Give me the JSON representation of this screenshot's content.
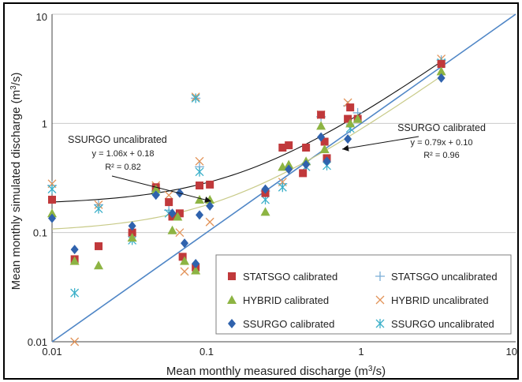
{
  "chart_data": {
    "type": "scatter",
    "title": "",
    "xlabel": "Mean monthly measured discharge (m",
    "xlabel_sup": "3",
    "xlabel_tail": "/s)",
    "ylabel": "Mean monthly simulated discharge (m",
    "ylabel_sup": "3",
    "ylabel_tail": "/s)",
    "x_scale": "log",
    "y_scale": "log",
    "xlim": [
      0.01,
      10
    ],
    "ylim": [
      0.01,
      10
    ],
    "x_ticks": [
      "0.01",
      "0.1",
      "1",
      "10"
    ],
    "y_ticks": [
      "0.01",
      "0.1",
      "1",
      "10"
    ],
    "grid": "horizontal major",
    "legend_position": "bottom-right inside",
    "colors": {
      "statsgo": "#c0393b",
      "hybrid": "#8db443",
      "ssurgo": "#2f62ad",
      "statsgo_uncal": "#7aaed6",
      "hybrid_uncal": "#e29358",
      "ssurgo_uncal": "#3cb0c9",
      "one_to_one": "#4f86c6",
      "fit_uncal": "#111111",
      "fit_cal": "#c8ca88",
      "grid": "#c9c9c9"
    },
    "series": [
      {
        "name": "STATSGO calibrated",
        "marker": "square",
        "x": [
          0.01,
          0.014,
          0.02,
          0.033,
          0.047,
          0.057,
          0.06,
          0.067,
          0.07,
          0.085,
          0.09,
          0.105,
          0.24,
          0.31,
          0.34,
          0.42,
          0.44,
          0.55,
          0.58,
          0.6,
          0.82,
          0.85,
          0.95,
          3.3
        ],
        "y": [
          0.2,
          0.057,
          0.075,
          0.1,
          0.26,
          0.19,
          0.14,
          0.15,
          0.06,
          0.048,
          0.27,
          0.275,
          0.23,
          0.6,
          0.63,
          0.35,
          0.6,
          1.2,
          0.68,
          0.48,
          1.1,
          1.4,
          1.1,
          3.5
        ]
      },
      {
        "name": "HYBRID calibrated",
        "marker": "triangle",
        "x": [
          0.01,
          0.014,
          0.02,
          0.033,
          0.047,
          0.06,
          0.065,
          0.072,
          0.085,
          0.09,
          0.105,
          0.24,
          0.31,
          0.34,
          0.44,
          0.55,
          0.58,
          0.85,
          0.95,
          3.3
        ],
        "y": [
          0.15,
          0.055,
          0.05,
          0.09,
          0.25,
          0.105,
          0.14,
          0.055,
          0.045,
          0.2,
          0.2,
          0.155,
          0.4,
          0.42,
          0.45,
          0.95,
          0.58,
          1.0,
          1.1,
          3.0
        ]
      },
      {
        "name": "SSURGO calibrated",
        "marker": "diamond",
        "x": [
          0.01,
          0.014,
          0.033,
          0.047,
          0.06,
          0.067,
          0.072,
          0.085,
          0.09,
          0.105,
          0.24,
          0.34,
          0.44,
          0.55,
          0.6,
          0.82,
          3.3
        ],
        "y": [
          0.135,
          0.07,
          0.115,
          0.22,
          0.15,
          0.23,
          0.08,
          0.052,
          0.145,
          0.175,
          0.25,
          0.38,
          0.42,
          0.75,
          0.45,
          0.72,
          2.6
        ]
      },
      {
        "name": "STATSGO uncalibrated",
        "marker": "plus",
        "x": [
          0.01,
          0.02,
          0.047,
          0.057,
          0.085,
          0.09,
          0.24,
          0.31,
          0.44,
          0.55,
          0.82,
          0.95,
          3.3
        ],
        "y": [
          0.27,
          0.18,
          0.24,
          0.16,
          1.7,
          0.4,
          0.24,
          0.28,
          0.42,
          1.15,
          1.45,
          1.25,
          3.8
        ]
      },
      {
        "name": "HYBRID uncalibrated",
        "marker": "x",
        "x": [
          0.01,
          0.014,
          0.02,
          0.033,
          0.047,
          0.057,
          0.067,
          0.072,
          0.085,
          0.09,
          0.105,
          0.31,
          0.55,
          0.82,
          3.3
        ],
        "y": [
          0.28,
          0.01,
          0.18,
          0.09,
          0.27,
          0.22,
          0.1,
          0.044,
          1.75,
          0.45,
          0.125,
          0.29,
          1.2,
          1.55,
          3.9
        ]
      },
      {
        "name": "SSURGO uncalibrated",
        "marker": "asterisk",
        "x": [
          0.01,
          0.014,
          0.02,
          0.033,
          0.047,
          0.057,
          0.085,
          0.09,
          0.24,
          0.31,
          0.44,
          0.6,
          0.85,
          3.3
        ],
        "y": [
          0.25,
          0.028,
          0.165,
          0.085,
          0.24,
          0.15,
          1.7,
          0.36,
          0.2,
          0.26,
          0.4,
          0.41,
          0.9,
          3.6
        ]
      }
    ],
    "lines": [
      {
        "kind": "one-to-one",
        "x": [
          0.01,
          10
        ],
        "y": [
          0.01,
          10
        ]
      },
      {
        "kind": "fit-uncalibrated",
        "slope": 1.06,
        "intercept": 0.18,
        "x_range": [
          0.01,
          3.3
        ]
      },
      {
        "kind": "fit-calibrated",
        "slope": 0.79,
        "intercept": 0.1,
        "x_range": [
          0.01,
          3.3
        ]
      }
    ],
    "annotations": {
      "uncalibrated": {
        "title": "SSURGO uncalibrated",
        "equation": "y = 1.06x + 0.18",
        "r2": "R² = 0.82",
        "arrow_target": {
          "x": 0.115,
          "y": 0.2
        }
      },
      "calibrated": {
        "title": "SSURGO calibrated",
        "equation": "y = 0.79x + 0.10",
        "r2": "R² = 0.96",
        "arrow_target": {
          "x": 0.72,
          "y": 0.62
        }
      }
    }
  }
}
